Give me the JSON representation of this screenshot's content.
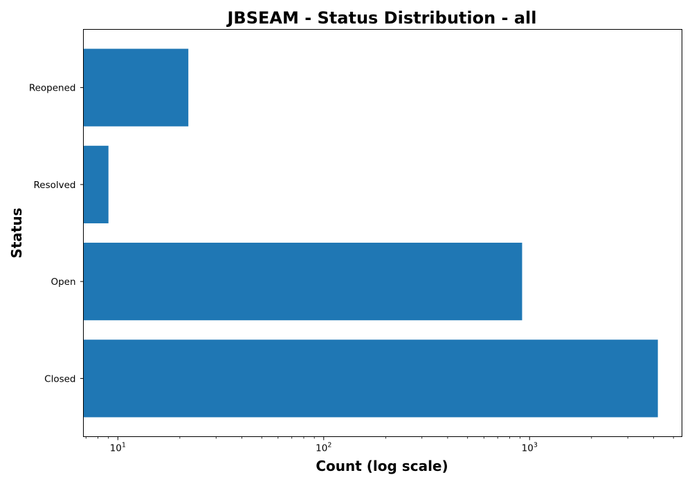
{
  "chart_data": {
    "type": "bar",
    "orientation": "horizontal",
    "title": "JBSEAM - Status Distribution - all",
    "xlabel": "Count (log scale)",
    "ylabel": "Status",
    "xscale": "log",
    "xlim": [
      6.8,
      5500
    ],
    "categories": [
      "Closed",
      "Open",
      "Resolved",
      "Reopened"
    ],
    "values": [
      4200,
      920,
      9,
      22
    ],
    "x_major_ticks": [
      {
        "base": "10",
        "exp": "1",
        "value": 10
      },
      {
        "base": "10",
        "exp": "2",
        "value": 100
      },
      {
        "base": "10",
        "exp": "3",
        "value": 1000
      }
    ],
    "bar_color": "#1f77b4",
    "grid": false,
    "legend": "none"
  }
}
